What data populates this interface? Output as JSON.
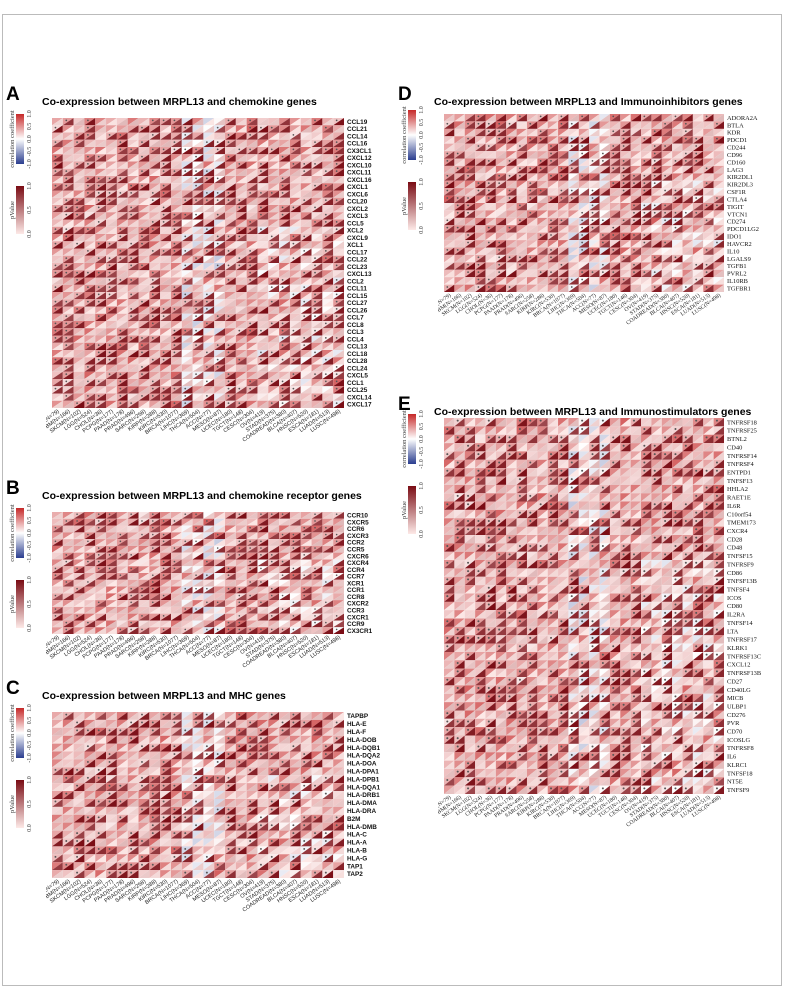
{
  "cohorts": [
    "UVM(N=79)",
    "GBM(N=166)",
    "SKCM(N=102)",
    "LGG(N=524)",
    "CHOL(N=36)",
    "PCPG(N=177)",
    "PAAD(N=178)",
    "PRAD(N=496)",
    "SARC(N=258)",
    "KIRP(N=288)",
    "KIRC(N=530)",
    "BRCA(N=1077)",
    "LIHC(N=369)",
    "THCA(N=504)",
    "ACC(N=77)",
    "MESO(N=87)",
    "UCEC(N=180)",
    "TGCT(N=148)",
    "CESC(N=304)",
    "OV(N=419)",
    "STAD(N=375)",
    "COADREAD(N=380)",
    "BLCA(N=407)",
    "HNSC(N=520)",
    "ESCA(N=181)",
    "LUAD(N=513)",
    "LUSC(N=498)"
  ],
  "legend": {
    "corr_label": "correlation coefficient",
    "corr_ticks": [
      "1.0",
      "0.5",
      "0.0",
      "-0.5",
      "-1.0"
    ],
    "p_label": "pValue",
    "p_ticks": [
      "1.0",
      "0.5",
      "0.0"
    ],
    "colors": {
      "pos": "#c62828",
      "neg": "#2a3d8f",
      "mid": "#ffffff",
      "p_dark": "#7a0c14",
      "p_light": "#fde9e7"
    }
  },
  "chart_data": [
    {
      "letter": "A",
      "type": "heatmap",
      "title": "Co-expression between MRPL13 and chemokine genes",
      "genes": [
        "CCL19",
        "CCL21",
        "CCL14",
        "CCL16",
        "CX3CL1",
        "CXCL12",
        "CXCL10",
        "CXCL11",
        "CXCL16",
        "CXCL1",
        "CXCL6",
        "CCL20",
        "CXCL2",
        "CXCL3",
        "CCL5",
        "XCL2",
        "CXCL9",
        "XCL1",
        "CCL17",
        "CCL22",
        "CCL23",
        "CXCL13",
        "CCL2",
        "CCL11",
        "CCL15",
        "CCL27",
        "CCL26",
        "CCL7",
        "CCL8",
        "CCL3",
        "CCL4",
        "CCL13",
        "CCL18",
        "CCL28",
        "CCL24",
        "CXCL5",
        "CCL1",
        "CCL25",
        "CXCL14",
        "CXCL17"
      ]
    },
    {
      "letter": "B",
      "type": "heatmap",
      "title": "Co-expression between MRPL13 and chemokine receptor genes",
      "genes": [
        "CCR10",
        "CXCR5",
        "CCR6",
        "CXCR3",
        "CCR2",
        "CCR5",
        "CXCR6",
        "CXCR4",
        "CCR4",
        "CCR7",
        "XCR1",
        "CCR1",
        "CCR8",
        "CXCR2",
        "CCR3",
        "CXCR1",
        "CCR9",
        "CX3CR1"
      ]
    },
    {
      "letter": "C",
      "type": "heatmap",
      "title": "Co-expression between MRPL13 and MHC genes",
      "genes": [
        "TAPBP",
        "HLA-E",
        "HLA-F",
        "HLA-DOB",
        "HLA-DQB1",
        "HLA-DQA2",
        "HLA-DOA",
        "HLA-DPA1",
        "HLA-DPB1",
        "HLA-DQA1",
        "HLA-DRB1",
        "HLA-DMA",
        "HLA-DRA",
        "B2M",
        "HLA-DMB",
        "HLA-C",
        "HLA-A",
        "HLA-B",
        "HLA-G",
        "TAP1",
        "TAP2"
      ]
    },
    {
      "letter": "D",
      "type": "heatmap",
      "title": "Co-expression between MRPL13 and Immunoinhibitors genes",
      "genes": [
        "ADORA2A",
        "BTLA",
        "KDR",
        "PDCD1",
        "CD244",
        "CD96",
        "CD160",
        "LAG3",
        "KIR2DL1",
        "KIR2DL3",
        "CSF1R",
        "CTLA4",
        "TIGIT",
        "VTCN1",
        "CD274",
        "PDCD1LG2",
        "IDO1",
        "HAVCR2",
        "IL10",
        "LGALS9",
        "TGFB1",
        "PVRL2",
        "IL10RB",
        "TGFBR1"
      ]
    },
    {
      "letter": "E",
      "type": "heatmap",
      "title": "Co-expression between MRPL13 and Immunostimulators genes",
      "genes": [
        "TNFRSF18",
        "TNFRSF25",
        "BTNL2",
        "CD40",
        "TNFRSF14",
        "TNFRSF4",
        "ENTPD1",
        "TNFSF13",
        "HHLA2",
        "RAET1E",
        "IL6R",
        "C10orf54",
        "TMEM173",
        "CXCR4",
        "CD28",
        "CD48",
        "TNFSF15",
        "TNFRSF9",
        "CD86",
        "TNFSF13B",
        "TNFSF4",
        "ICOS",
        "CD80",
        "IL2RA",
        "TNFSF14",
        "LTA",
        "TNFRSF17",
        "KLRK1",
        "TNFRSF13C",
        "CXCL12",
        "TNFRSF13B",
        "CD27",
        "CD40LG",
        "MICB",
        "ULBP1",
        "CD276",
        "PVR",
        "CD70",
        "ICOSLG",
        "TNFRSF8",
        "IL6",
        "KLRC1",
        "TNFSF18",
        "NT5E",
        "TNFSF9"
      ]
    }
  ]
}
